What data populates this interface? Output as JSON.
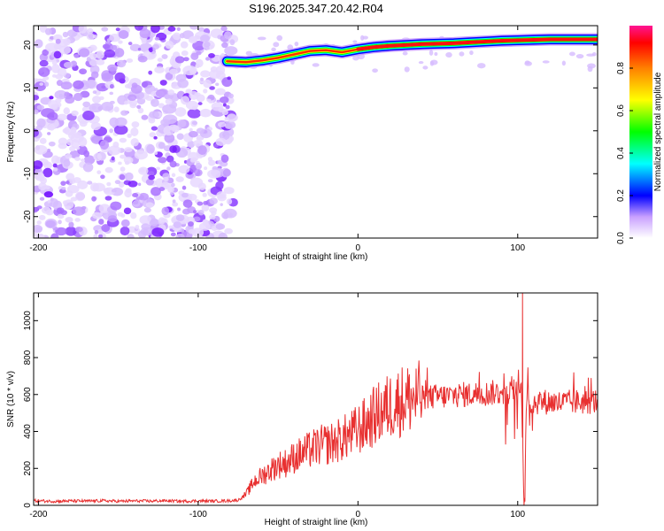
{
  "title": "S196.2025.347.20.42.R04",
  "chart_data": [
    {
      "type": "heatmap",
      "title": "S196.2025.347.20.42.R04",
      "xlabel": "Height of straight line (km)",
      "ylabel": "Frequency (Hz)",
      "xlim": [
        -203,
        150
      ],
      "ylim": [
        -25,
        24.5
      ],
      "xticks": [
        -200,
        -100,
        0,
        100
      ],
      "yticks": [
        -20,
        -10,
        0,
        10,
        20
      ],
      "description_series": [
        {
          "name": "noise region",
          "x_range": [
            -203,
            -78
          ],
          "y_range": [
            -25,
            24.5
          ],
          "level": 0.12
        },
        {
          "name": "signal ridge",
          "x": [
            -82,
            -70,
            -60,
            -50,
            -40,
            -30,
            -20,
            -10,
            0,
            10,
            20,
            30,
            40,
            50,
            60,
            70,
            80,
            90,
            100,
            110,
            120,
            130,
            150
          ],
          "y": [
            16.2,
            16.0,
            16.4,
            17.0,
            17.8,
            18.6,
            18.8,
            18.3,
            19.0,
            19.5,
            19.8,
            20.0,
            20.2,
            20.3,
            20.4,
            20.6,
            20.8,
            21.0,
            21.1,
            21.2,
            21.3,
            21.3,
            21.3
          ]
        }
      ],
      "colorbar": {
        "label": "Normalized spectral amplitude",
        "range": [
          0.0,
          1.0
        ],
        "ticks": [
          0.0,
          0.2,
          0.4,
          0.6,
          0.8
        ],
        "tick_labels": [
          "0.0",
          "0.2",
          "0.4",
          "0.6",
          "0.8"
        ],
        "colors": [
          "#ffffff",
          "#9b30ff",
          "#0000ff",
          "#00ffff",
          "#00ff00",
          "#ffff00",
          "#ff8000",
          "#ff0000",
          "#ff1493"
        ]
      }
    },
    {
      "type": "line",
      "xlabel": "Height of straight line (km)",
      "ylabel": "SNR (10 * v/v)",
      "xlim": [
        -203,
        150
      ],
      "ylim": [
        0,
        1150
      ],
      "xticks": [
        -200,
        -100,
        0,
        100
      ],
      "yticks": [
        0,
        200,
        400,
        600,
        800,
        1000
      ],
      "series": [
        {
          "name": "SNR",
          "color": "#e83030",
          "x": [
            -203,
            -190,
            -180,
            -170,
            -160,
            -150,
            -140,
            -130,
            -120,
            -110,
            -100,
            -90,
            -80,
            -75,
            -70,
            -65,
            -60,
            -55,
            -50,
            -45,
            -40,
            -35,
            -30,
            -25,
            -20,
            -15,
            -10,
            -5,
            0,
            5,
            10,
            15,
            20,
            25,
            30,
            35,
            40,
            45,
            50,
            55,
            60,
            65,
            70,
            75,
            80,
            85,
            90,
            95,
            100,
            102,
            104,
            106,
            108,
            110,
            115,
            120,
            125,
            130,
            135,
            140,
            145,
            150
          ],
          "y": [
            25,
            22,
            24,
            23,
            25,
            22,
            24,
            23,
            25,
            22,
            24,
            23,
            25,
            28,
            60,
            130,
            160,
            190,
            220,
            230,
            260,
            280,
            300,
            320,
            330,
            340,
            360,
            380,
            410,
            440,
            480,
            510,
            540,
            560,
            575,
            580,
            585,
            585,
            590,
            590,
            595,
            600,
            600,
            605,
            605,
            610,
            610,
            615,
            620,
            700,
            40,
            650,
            560,
            560,
            560,
            560,
            555,
            555,
            560,
            560,
            560,
            565
          ],
          "peaks": [
            {
              "x": 103,
              "y": 1150
            },
            {
              "x": 104.5,
              "y": 20
            }
          ]
        }
      ]
    }
  ]
}
